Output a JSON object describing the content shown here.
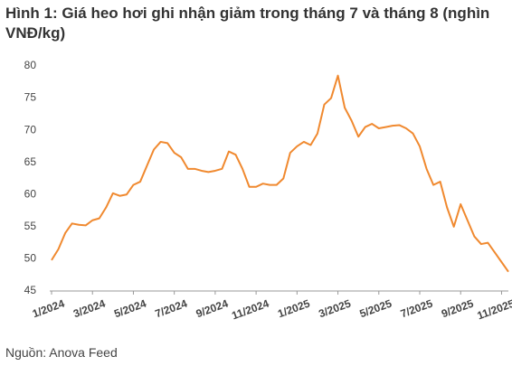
{
  "chart_data": {
    "type": "line",
    "title": "Hình 1: Giá heo hơi ghi nhận giảm trong tháng 7 và tháng 8 (nghìn VNĐ/kg)",
    "source": "Nguồn: Anova Feed",
    "categories": [
      "1/2024",
      null,
      null,
      null,
      null,
      null,
      "3/2024",
      null,
      null,
      null,
      null,
      null,
      "5/2024",
      null,
      null,
      null,
      null,
      null,
      "7/2024",
      null,
      null,
      null,
      null,
      null,
      "9/2024",
      null,
      null,
      null,
      null,
      null,
      "11/2024",
      null,
      null,
      null,
      null,
      null,
      "1/2025",
      null,
      null,
      null,
      null,
      null,
      "3/2025",
      null,
      null,
      null,
      null,
      null,
      "5/2025",
      null,
      null,
      null,
      null,
      null,
      "7/2025",
      null,
      null,
      null,
      null,
      null,
      "9/2025",
      null,
      null,
      null,
      null,
      null,
      "11/2025",
      null
    ],
    "values": [
      49.8,
      51.5,
      54,
      55.5,
      55.3,
      55.2,
      56,
      56.3,
      58,
      60.2,
      59.8,
      60,
      61.5,
      62,
      64.5,
      67,
      68.2,
      68,
      66.5,
      65.8,
      64,
      64,
      63.7,
      63.5,
      63.7,
      64,
      66.7,
      66.2,
      64,
      61.2,
      61.2,
      61.7,
      61.5,
      61.5,
      62.5,
      66.5,
      67.5,
      68.2,
      67.7,
      69.5,
      74,
      75,
      78.5,
      73.5,
      71.5,
      69,
      70.5,
      71,
      70.3,
      70.5,
      70.7,
      70.8,
      70.3,
      69.5,
      67.5,
      64,
      61.5,
      62,
      58,
      55,
      58.5,
      56,
      53.5,
      52.3,
      52.5,
      51,
      49.5,
      48
    ],
    "color": "#f0892f",
    "ylim": [
      45,
      80
    ],
    "yticks": [
      45,
      50,
      55,
      60,
      65,
      70,
      75,
      80
    ],
    "grid": false
  }
}
